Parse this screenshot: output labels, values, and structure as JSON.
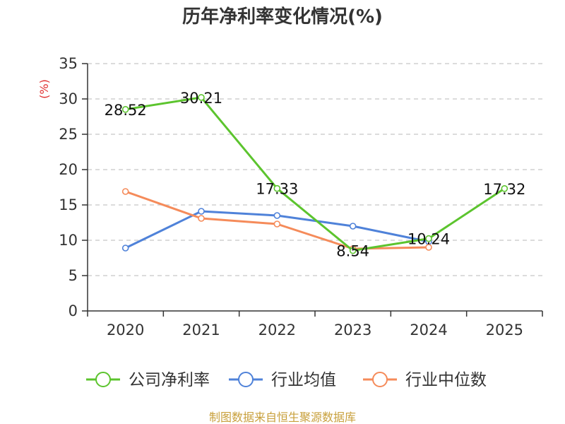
{
  "chart_data": {
    "type": "line",
    "title": "历年净利率变化情况(%)",
    "ylabel": "(%)",
    "xlabel": "",
    "categories": [
      "2020",
      "2021",
      "2022",
      "2023",
      "2024",
      "2025"
    ],
    "ylim": [
      0,
      35
    ],
    "yticks": [
      0,
      5,
      10,
      15,
      20,
      25,
      30,
      35
    ],
    "grid": true,
    "legend_position": "bottom",
    "series": [
      {
        "name": "公司净利率",
        "color": "#5cc42e",
        "values": [
          28.52,
          30.21,
          17.33,
          8.54,
          10.24,
          17.32
        ],
        "labels": [
          "28.52",
          "30.21",
          "17.33",
          "8.54",
          "10.24",
          "17.32"
        ]
      },
      {
        "name": "行业均值",
        "color": "#4f82d9",
        "values": [
          8.9,
          14.1,
          13.5,
          12.0,
          9.8,
          null
        ]
      },
      {
        "name": "行业中位数",
        "color": "#f58b5a",
        "values": [
          16.9,
          13.1,
          12.3,
          8.8,
          9.0,
          null
        ]
      }
    ]
  },
  "source": "制图数据来自恒生聚源数据库"
}
